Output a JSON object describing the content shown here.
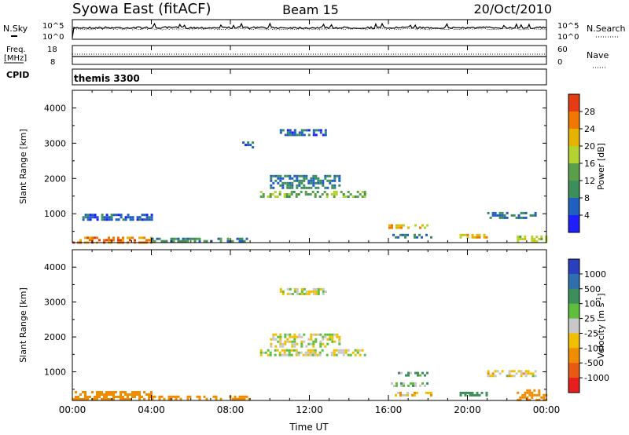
{
  "header": {
    "station": "Syowa East (fitACF)",
    "beam": "Beam 15",
    "date": "20/Oct/2010"
  },
  "panels": {
    "nsky": {
      "label": "N.Sky",
      "ticks": [
        "10^5",
        "10^0"
      ]
    },
    "nsearch": {
      "label": "N.Search",
      "ticks": [
        "10^5",
        "10^0"
      ]
    },
    "freq": {
      "label_line1": "Freq.",
      "label_line2": "[MHz]",
      "ticks": [
        "18",
        "8"
      ]
    },
    "nave": {
      "label": "Nave",
      "ticks": [
        "60",
        "0"
      ]
    },
    "cpid": {
      "label": "CPID",
      "value": "themis 3300"
    }
  },
  "time_axis": {
    "label": "Time UT",
    "ticks": [
      "00:00",
      "04:00",
      "08:00",
      "12:00",
      "16:00",
      "20:00",
      "00:00"
    ]
  },
  "range_axis": {
    "label": "Slant Range [km]",
    "ticks": [
      "1000",
      "2000",
      "3000",
      "4000"
    ],
    "range": [
      180,
      4500
    ]
  },
  "power_scale": {
    "title": "Power [dB]",
    "ticks": [
      "4",
      "8",
      "12",
      "16",
      "20",
      "24",
      "28"
    ],
    "colors": [
      "#1e1eff",
      "#1f5fbf",
      "#3c8f5a",
      "#5aa04a",
      "#b4d230",
      "#e6b400",
      "#f07800",
      "#e63c14"
    ]
  },
  "velocity_scale": {
    "title": "Velocity [m s",
    "title_sup": "-1",
    "title_end": "]",
    "ticks": [
      "1000",
      "500",
      "100",
      "25",
      "-25",
      "-100",
      "-500",
      "-1000"
    ],
    "colors": [
      "#2840c0",
      "#2f6fb0",
      "#3c8f5a",
      "#5fbf3c",
      "#c8c8c8",
      "#f0c000",
      "#f08c00",
      "#e85a14",
      "#e61e1e"
    ]
  },
  "chart_data": [
    {
      "type": "heatmap",
      "title": "Power [dB]",
      "xlabel": "Time UT",
      "ylabel": "Slant Range [km]",
      "xlim": [
        "00:00",
        "24:00"
      ],
      "ylim": [
        180,
        4500
      ],
      "value_range": [
        0,
        30
      ],
      "regions": [
        {
          "t": [
            0.0,
            4.0
          ],
          "range": [
            200,
            350
          ],
          "value": 26
        },
        {
          "t": [
            0.5,
            4.0
          ],
          "range": [
            800,
            1000
          ],
          "value": 6
        },
        {
          "t": [
            4.0,
            9.0
          ],
          "range": [
            230,
            320
          ],
          "value": 10
        },
        {
          "t": [
            9.5,
            14.8
          ],
          "range": [
            1500,
            1650
          ],
          "value": 14
        },
        {
          "t": [
            10.0,
            13.5
          ],
          "range": [
            1700,
            2100
          ],
          "value": 8
        },
        {
          "t": [
            10.5,
            12.8
          ],
          "range": [
            3200,
            3400
          ],
          "value": 6
        },
        {
          "t": [
            8.6,
            9.2
          ],
          "range": [
            2900,
            3050
          ],
          "value": 6
        },
        {
          "t": [
            16.0,
            18.0
          ],
          "range": [
            600,
            700
          ],
          "value": 22
        },
        {
          "t": [
            16.2,
            18.3
          ],
          "range": [
            350,
            430
          ],
          "value": 8
        },
        {
          "t": [
            19.6,
            21.0
          ],
          "range": [
            350,
            430
          ],
          "value": 22
        },
        {
          "t": [
            21.0,
            23.5
          ],
          "range": [
            850,
            1050
          ],
          "value": 8
        },
        {
          "t": [
            22.5,
            24.0
          ],
          "range": [
            220,
            380
          ],
          "value": 18
        }
      ]
    },
    {
      "type": "heatmap",
      "title": "Velocity [m s-1]",
      "xlabel": "Time UT",
      "ylabel": "Slant Range [km]",
      "xlim": [
        "00:00",
        "24:00"
      ],
      "ylim": [
        180,
        4500
      ],
      "value_range": [
        -1000,
        1000
      ],
      "regions": [
        {
          "t": [
            0.0,
            4.0
          ],
          "range": [
            200,
            450
          ],
          "value": -300
        },
        {
          "t": [
            4.0,
            9.0
          ],
          "range": [
            230,
            320
          ],
          "value": -200
        },
        {
          "t": [
            9.5,
            14.8
          ],
          "range": [
            1500,
            1650
          ],
          "value": 0
        },
        {
          "t": [
            10.0,
            13.5
          ],
          "range": [
            1700,
            2100
          ],
          "value": 0
        },
        {
          "t": [
            10.5,
            12.8
          ],
          "range": [
            3200,
            3400
          ],
          "value": 0
        },
        {
          "t": [
            16.0,
            18.0
          ],
          "range": [
            600,
            700
          ],
          "value": 60
        },
        {
          "t": [
            16.0,
            18.0
          ],
          "range": [
            900,
            1000
          ],
          "value": 80
        },
        {
          "t": [
            16.2,
            18.3
          ],
          "range": [
            350,
            430
          ],
          "value": -80
        },
        {
          "t": [
            19.6,
            21.0
          ],
          "range": [
            350,
            430
          ],
          "value": 300
        },
        {
          "t": [
            21.0,
            23.5
          ],
          "range": [
            850,
            1050
          ],
          "value": -50
        },
        {
          "t": [
            22.5,
            24.0
          ],
          "range": [
            220,
            500
          ],
          "value": -400
        }
      ]
    }
  ]
}
